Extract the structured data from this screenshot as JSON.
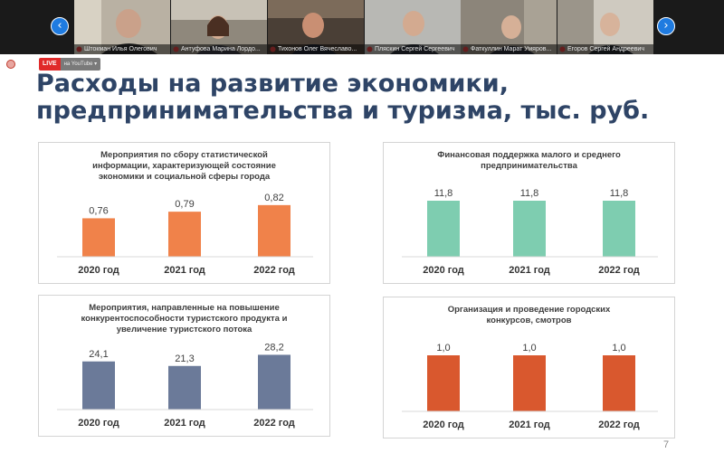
{
  "participants": [
    {
      "name": "Штокман Илья Олегович"
    },
    {
      "name": "Антуфова Марина Лордо..."
    },
    {
      "name": "Тихонов Олег Вячеславо..."
    },
    {
      "name": "Пляскин Сергей Сергеевич"
    },
    {
      "name": "Фаткуллин Марат Умяров..."
    },
    {
      "name": "Егоров Сергей Андреевич"
    }
  ],
  "nav": {
    "prev": "‹",
    "next": "›"
  },
  "live": {
    "label": "LIVE",
    "platform": "на YouTube ▾"
  },
  "slide": {
    "title_line1": "Расходы на развитие экономики,",
    "title_line2": "предпринимательства и туризма, тыс. руб.",
    "page_number": "7"
  },
  "chart_data": [
    {
      "type": "bar",
      "title": "Мероприятия по сбору статистической\nинформации, характеризующей состояние\nэкономики и социальной сферы города",
      "categories": [
        "2020 год",
        "2021 год",
        "2022 год"
      ],
      "values": [
        0.76,
        0.79,
        0.82
      ],
      "labels": [
        "0,76",
        "0,79",
        "0,82"
      ],
      "ylim": [
        0.7,
        0.84
      ],
      "color": "#f0824a"
    },
    {
      "type": "bar",
      "title": "Финансовая поддержка малого и среднего\nпредпринимательства",
      "categories": [
        "2020 год",
        "2021 год",
        "2022 год"
      ],
      "values": [
        11.8,
        11.8,
        11.8
      ],
      "labels": [
        "11,8",
        "11,8",
        "11,8"
      ],
      "ylim": [
        0,
        11.8
      ],
      "color": "#7ecdb0"
    },
    {
      "type": "bar",
      "title": "Мероприятия, направленные на повышение\nконкурентоспособности туристского продукта и\nувеличение туристского потока",
      "categories": [
        "2020 год",
        "2021 год",
        "2022 год"
      ],
      "values": [
        24.1,
        21.3,
        28.2
      ],
      "labels": [
        "24,1",
        "21,3",
        "28,2"
      ],
      "ylim": [
        10,
        29
      ],
      "color": "#6b7a99"
    },
    {
      "type": "bar",
      "title": "Организация и проведение городских\nконкурсов, смотров",
      "categories": [
        "2020 год",
        "2021 год",
        "2022 год"
      ],
      "values": [
        1.0,
        1.0,
        1.0
      ],
      "labels": [
        "1,0",
        "1,0",
        "1,0"
      ],
      "ylim": [
        0,
        1.0
      ],
      "color": "#d9582e"
    }
  ]
}
